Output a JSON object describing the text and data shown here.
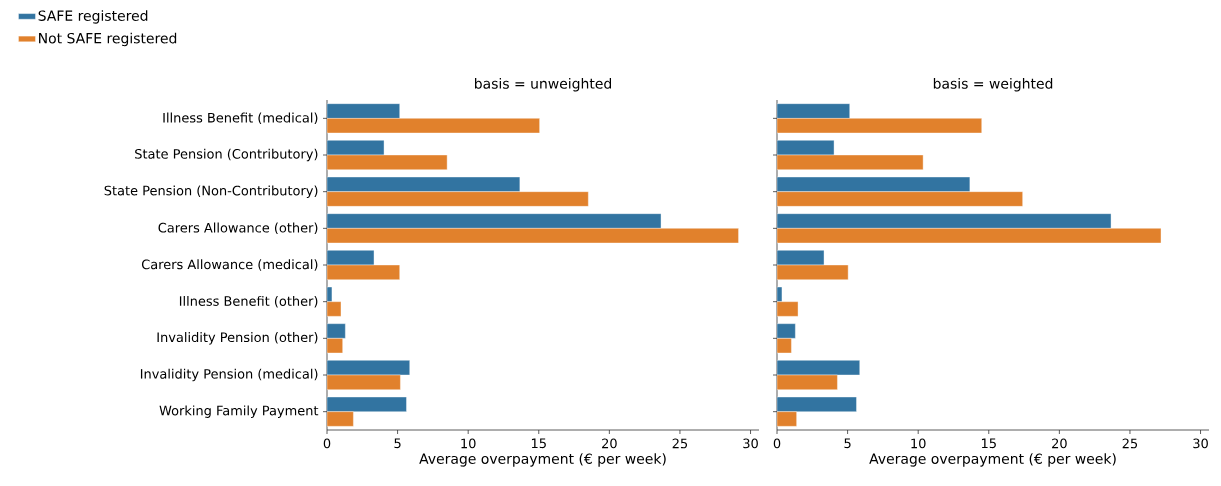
{
  "chart_data": [
    {
      "type": "bar",
      "orientation": "horizontal",
      "title": "basis = unweighted",
      "xlabel": "Average overpayment (€ per week)",
      "categories": [
        "Illness Benefit (medical)",
        "State Pension (Contributory)",
        "State Pension (Non-Contributory)",
        "Carers Allowance (other)",
        "Carers Allowance (medical)",
        "Illness Benefit (other)",
        "Invalidity Pension (other)",
        "Invalidity Pension (medical)",
        "Working Family Payment"
      ],
      "series": [
        {
          "name": "SAFE registered",
          "color": "#3274a1",
          "values": [
            5.15,
            4.04,
            13.66,
            23.66,
            3.33,
            0.35,
            1.3,
            5.86,
            5.63
          ]
        },
        {
          "name": "Not SAFE registered",
          "color": "#e1812c",
          "values": [
            15.06,
            8.51,
            18.51,
            29.15,
            5.15,
            0.99,
            1.11,
            5.2,
            1.87
          ]
        }
      ],
      "xlim": [
        0,
        30.6
      ],
      "xticks": [
        0,
        5,
        10,
        15,
        20,
        25,
        30
      ],
      "legend": "top left",
      "grid": false
    },
    {
      "type": "bar",
      "orientation": "horizontal",
      "title": "basis = weighted",
      "xlabel": "Average overpayment (€ per week)",
      "categories": [
        null,
        null,
        null,
        null,
        null,
        null,
        null,
        null,
        null
      ],
      "series": [
        {
          "color": "#3274a1",
          "values": [
            5.15,
            4.04,
            13.66,
            23.66,
            3.33,
            0.35,
            1.3,
            5.86,
            5.63
          ]
        },
        {
          "color": "#e1812c",
          "values": [
            14.5,
            10.35,
            17.4,
            27.2,
            5.04,
            1.49,
            1.02,
            4.28,
            1.39
          ]
        }
      ],
      "xlim": [
        0,
        30.6
      ],
      "xticks": [
        0,
        5,
        10,
        15,
        20,
        25,
        30
      ],
      "tick_labels": "x",
      "grid": false
    }
  ]
}
